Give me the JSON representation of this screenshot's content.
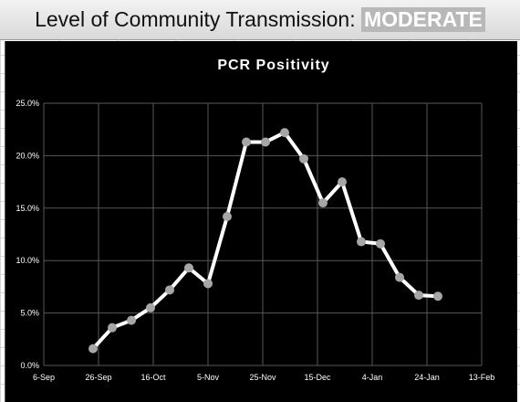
{
  "header": {
    "title": "Level of Community Transmission:",
    "level": "MODERATE"
  },
  "colors": {
    "panel_background": "#000000",
    "line": "#ffffff",
    "marker": "#a6a6a6",
    "grid": "#595959",
    "text": "#ffffff",
    "banner_level_background": "#b8b8b8"
  },
  "chart_data": {
    "type": "line",
    "title": "PCR Positivity",
    "xlabel": "",
    "ylabel": "",
    "x_type": "date",
    "x_ticks": [
      "2020-09-06",
      "2020-09-26",
      "2020-10-16",
      "2020-11-05",
      "2020-11-25",
      "2020-12-15",
      "2021-01-04",
      "2021-01-24",
      "2021-02-13"
    ],
    "x_tick_labels": [
      "6-Sep",
      "26-Sep",
      "16-Oct",
      "5-Nov",
      "25-Nov",
      "15-Dec",
      "4-Jan",
      "24-Jan",
      "13-Feb"
    ],
    "xlim": [
      "2020-09-06",
      "2021-02-13"
    ],
    "ylim": [
      0,
      0.25
    ],
    "y_ticks": [
      0,
      0.05,
      0.1,
      0.15,
      0.2,
      0.25
    ],
    "y_tick_labels": [
      "0.0%",
      "5.0%",
      "10.0%",
      "15.0%",
      "20.0%",
      "25.0%"
    ],
    "grid": true,
    "legend": "none",
    "series": [
      {
        "points": [
          {
            "x": "2020-09-24",
            "y": 0.016
          },
          {
            "x": "2020-10-01",
            "y": 0.036
          },
          {
            "x": "2020-10-08",
            "y": 0.043
          },
          {
            "x": "2020-10-15",
            "y": 0.055
          },
          {
            "x": "2020-10-22",
            "y": 0.072
          },
          {
            "x": "2020-10-29",
            "y": 0.093
          },
          {
            "x": "2020-11-05",
            "y": 0.078
          },
          {
            "x": "2020-11-12",
            "y": 0.142
          },
          {
            "x": "2020-11-19",
            "y": 0.213
          },
          {
            "x": "2020-11-26",
            "y": 0.213
          },
          {
            "x": "2020-12-03",
            "y": 0.222
          },
          {
            "x": "2020-12-10",
            "y": 0.197
          },
          {
            "x": "2020-12-17",
            "y": 0.155
          },
          {
            "x": "2020-12-24",
            "y": 0.175
          },
          {
            "x": "2020-12-31",
            "y": 0.118
          },
          {
            "x": "2021-01-07",
            "y": 0.116
          },
          {
            "x": "2021-01-14",
            "y": 0.084
          },
          {
            "x": "2021-01-21",
            "y": 0.067
          },
          {
            "x": "2021-01-28",
            "y": 0.066
          }
        ]
      }
    ]
  }
}
